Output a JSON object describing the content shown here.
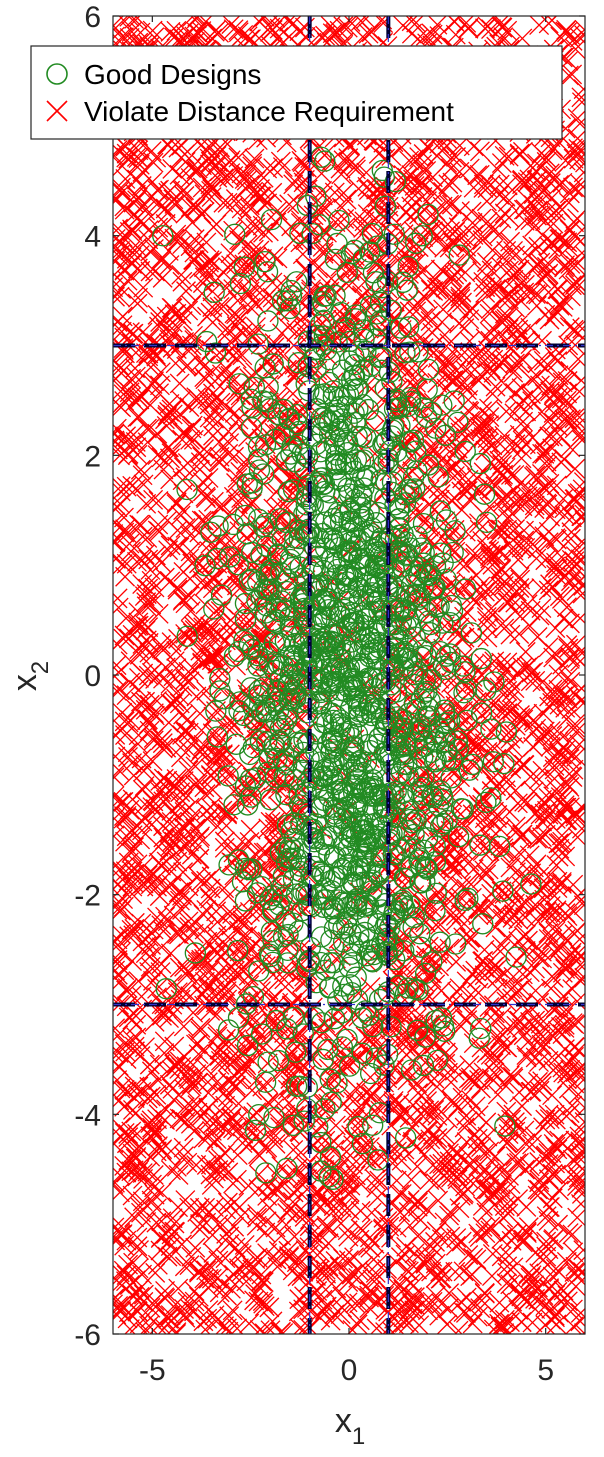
{
  "chart_data": {
    "type": "scatter",
    "title": "",
    "xlabel": "x",
    "xlabel_sub": "1",
    "ylabel": "x",
    "ylabel_sub": "2",
    "xlim": [
      -6,
      6
    ],
    "ylim": [
      -6,
      6
    ],
    "xticks": [
      {
        "value": -5,
        "label": "-5"
      },
      {
        "value": 0,
        "label": "0"
      },
      {
        "value": 5,
        "label": "5"
      }
    ],
    "yticks": [
      {
        "value": -6,
        "label": "-6"
      },
      {
        "value": -4,
        "label": "-4"
      },
      {
        "value": -2,
        "label": "-2"
      },
      {
        "value": 0,
        "label": "0"
      },
      {
        "value": 2,
        "label": "2"
      },
      {
        "value": 4,
        "label": "4"
      },
      {
        "value": 6,
        "label": "6"
      }
    ],
    "grid": false,
    "legend_position": "top-left",
    "series": [
      {
        "name": "Good Designs",
        "marker": "circle",
        "color": "#228B22",
        "distribution": {
          "center": [
            0,
            0
          ],
          "spread_x": 1.4,
          "spread_y": 1.9,
          "x_range": [
            -4.8,
            4.8
          ],
          "y_range": [
            -4.8,
            4.8
          ],
          "count": 1500
        }
      },
      {
        "name": "Violate Distance Requirement",
        "marker": "x",
        "color": "#FF0000",
        "distribution": {
          "x_range": [
            -6,
            6
          ],
          "y_range": [
            -6,
            6
          ],
          "count": 5200,
          "sparse_inner_region": {
            "x_range": [
              -1,
              1
            ],
            "y_range": [
              -3,
              3
            ]
          }
        }
      }
    ],
    "reference_lines": [
      {
        "orientation": "vertical",
        "value": -1,
        "style": "dashed",
        "color": "#000033",
        "overlay_color": "#3333CC"
      },
      {
        "orientation": "vertical",
        "value": 1,
        "style": "dashed",
        "color": "#000033",
        "overlay_color": "#3333CC"
      },
      {
        "orientation": "horizontal",
        "value": 3,
        "style": "dashed",
        "color": "#000033",
        "overlay_color": "#3333CC"
      },
      {
        "orientation": "horizontal",
        "value": -3,
        "style": "dashed",
        "color": "#000033",
        "overlay_color": "#3333CC"
      }
    ]
  }
}
